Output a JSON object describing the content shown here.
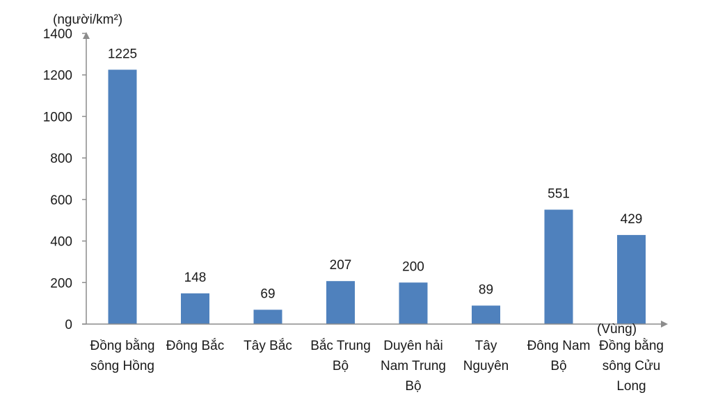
{
  "chart_data": {
    "type": "bar",
    "ylabel": "(người/km²)",
    "xlabel": "(Vùng)",
    "ylim": [
      0,
      1400
    ],
    "yticks": [
      0,
      200,
      400,
      600,
      800,
      1000,
      1200,
      1400
    ],
    "grid": false,
    "legend": "none",
    "bar_color": "#4f81bd",
    "categories": [
      [
        "Đồng bằng",
        "sông Hồng"
      ],
      [
        "Đông Bắc"
      ],
      [
        "Tây Bắc"
      ],
      [
        "Bắc Trung",
        "Bộ"
      ],
      [
        "Duyên hải",
        "Nam Trung",
        "Bộ"
      ],
      [
        "Tây",
        "Nguyên"
      ],
      [
        "Đông Nam",
        "Bộ"
      ],
      [
        "Đồng bằng",
        "sông Cửu",
        "Long"
      ]
    ],
    "values": [
      1225,
      148,
      69,
      207,
      200,
      89,
      551,
      429
    ]
  }
}
